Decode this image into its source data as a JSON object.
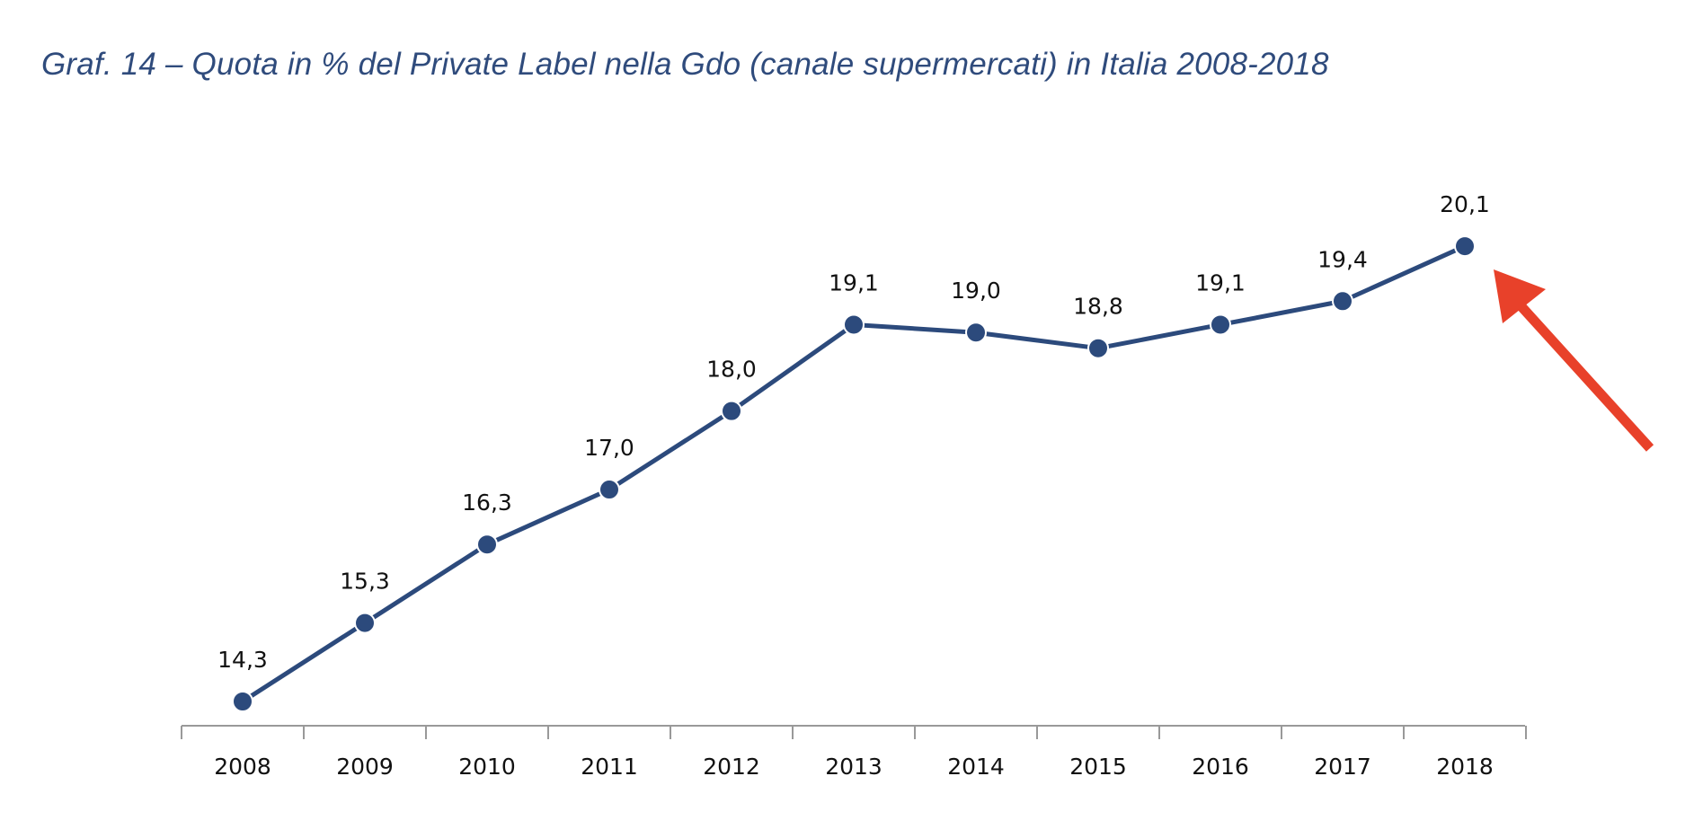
{
  "chart_data": {
    "type": "line",
    "title": "Graf. 14 – Quota in % del Private Label nella Gdo (canale supermercati) in Italia 2008-2018",
    "categories": [
      "2008",
      "2009",
      "2010",
      "2011",
      "2012",
      "2013",
      "2014",
      "2015",
      "2016",
      "2017",
      "2018"
    ],
    "values": [
      14.3,
      15.3,
      16.3,
      17.0,
      18.0,
      19.1,
      19.0,
      18.8,
      19.1,
      19.4,
      20.1
    ],
    "data_labels": [
      "14,3",
      "15,3",
      "16,3",
      "17,0",
      "18,0",
      "19,1",
      "19,0",
      "18,8",
      "19,1",
      "19,4",
      "20,1"
    ],
    "xlabel": "",
    "ylabel": "",
    "grid": false,
    "y_axis_visible": false,
    "colors": {
      "line": "#2c4a7c",
      "title": "#2f4b7c",
      "arrow": "#e8412a"
    },
    "annotation": "arrow pointing to 2018 value"
  }
}
